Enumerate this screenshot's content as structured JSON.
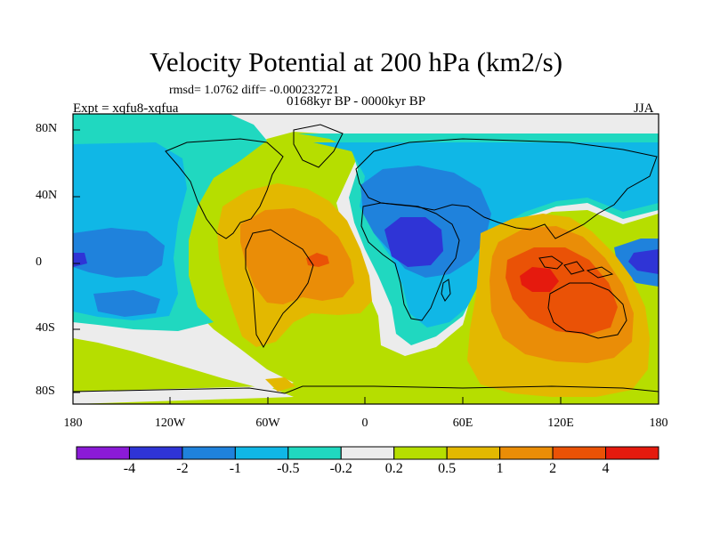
{
  "title": "Velocity Potential at 200 hPa (km2/s)",
  "stats_text": "rmsd= 1.0762  diff= -0.000232721",
  "period_text": "0168kyr BP - 0000kyr BP",
  "expt_text": "Expt = xqfu8-xqfua",
  "season_text": "JJA",
  "y_ticks": [
    "80N",
    "40N",
    "0",
    "40S",
    "80S"
  ],
  "x_ticks": [
    "180",
    "120W",
    "60W",
    "0",
    "60E",
    "120E",
    "180"
  ],
  "colorbar": {
    "colors": [
      "#8b1ad7",
      "#2f34d6",
      "#1f82dc",
      "#10b7e6",
      "#20d8c0",
      "#ececec",
      "#b6de00",
      "#e3b800",
      "#ea8d07",
      "#ea5206",
      "#e51a0e"
    ],
    "labels": [
      "-4",
      "-2",
      "-1",
      "-0.5",
      "-0.2",
      "0.2",
      "0.5",
      "1",
      "2",
      "4"
    ]
  }
}
